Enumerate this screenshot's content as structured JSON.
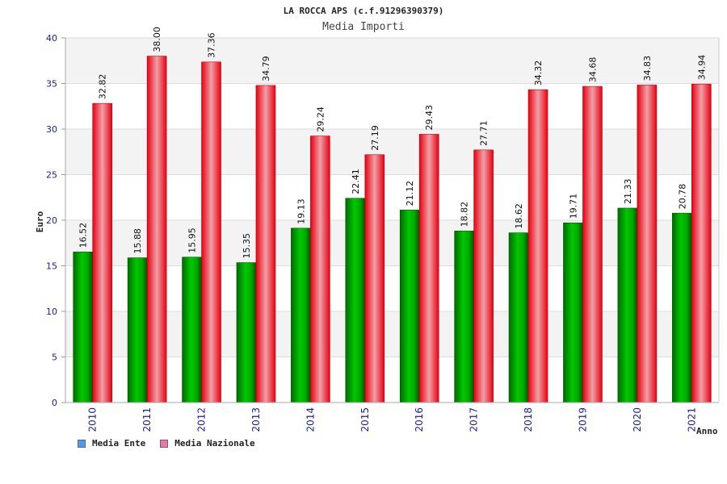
{
  "chart_data": {
    "type": "bar",
    "title": "LA ROCCA APS (c.f.91296390379)",
    "subtitle": "Media Importi",
    "xlabel": "Anno",
    "ylabel": "Euro",
    "ylim": [
      0,
      40
    ],
    "yticks": [
      0,
      5,
      10,
      15,
      20,
      25,
      30,
      35,
      40
    ],
    "categories": [
      "2010",
      "2011",
      "2012",
      "2013",
      "2014",
      "2015",
      "2016",
      "2017",
      "2018",
      "2019",
      "2020",
      "2021"
    ],
    "series": [
      {
        "name": "Media Ente",
        "color": "#00aa00",
        "values": [
          16.52,
          15.88,
          15.95,
          15.35,
          19.13,
          22.41,
          21.12,
          18.82,
          18.62,
          19.71,
          21.33,
          20.78
        ],
        "labels": [
          "16.52",
          "15.88",
          "15.95",
          "15.35",
          "19.13",
          "22.41",
          "21.12",
          "18.82",
          "18.62",
          "19.71",
          "21.33",
          "20.78"
        ]
      },
      {
        "name": "Media Nazionale",
        "color": "#ee1122",
        "values": [
          32.82,
          38.0,
          37.36,
          34.79,
          29.24,
          27.19,
          29.43,
          27.71,
          34.32,
          34.68,
          34.83,
          34.94
        ],
        "labels": [
          "32.82",
          "38.00",
          "37.36",
          "34.79",
          "29.24",
          "27.19",
          "29.43",
          "27.71",
          "34.32",
          "34.68",
          "34.83",
          "34.94"
        ]
      }
    ],
    "legend": {
      "position": "bottom-left",
      "items": [
        {
          "label": "Media Ente",
          "color": "#5599ee"
        },
        {
          "label": "Media Nazionale",
          "color": "#ee77aa"
        }
      ]
    },
    "grid": true
  }
}
